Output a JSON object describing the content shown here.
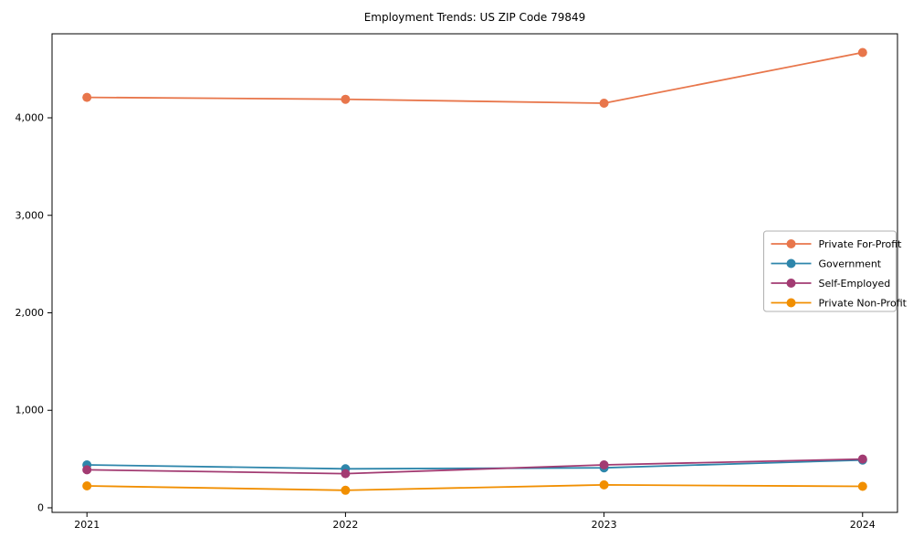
{
  "title": "Employment Trends: US ZIP Code 79849",
  "colors": {
    "private_for_profit": "#E8764B",
    "government": "#2E86AB",
    "self_employed": "#A23B72",
    "private_non_profit": "#F18F01",
    "spine": "#000000",
    "legend_border": "#b0b0b0",
    "background": "#ffffff"
  },
  "chart_data": {
    "type": "line",
    "title": "Employment Trends: US ZIP Code 79849",
    "xlabel": "",
    "ylabel": "",
    "x": [
      2021,
      2022,
      2023,
      2024
    ],
    "x_tick_labels": [
      "2021",
      "2022",
      "2023",
      "2024"
    ],
    "yticks": [
      0,
      1000,
      2000,
      3000,
      4000
    ],
    "ytick_labels": [
      "0",
      "1,000",
      "2,000",
      "3,000",
      "4,000"
    ],
    "xlim": [
      2020.865,
      2024.135
    ],
    "ylim": [
      -47,
      4862
    ],
    "grid": false,
    "marker": "o",
    "legend_position": "center-right",
    "series": [
      {
        "name": "Private For-Profit",
        "color": "#E8764B",
        "values": [
          4210,
          4190,
          4150,
          4670
        ]
      },
      {
        "name": "Government",
        "color": "#2E86AB",
        "values": [
          440,
          400,
          410,
          490
        ]
      },
      {
        "name": "Self-Employed",
        "color": "#A23B72",
        "values": [
          390,
          350,
          440,
          500
        ]
      },
      {
        "name": "Private Non-Profit",
        "color": "#F18F01",
        "values": [
          225,
          180,
          235,
          220
        ]
      }
    ]
  }
}
